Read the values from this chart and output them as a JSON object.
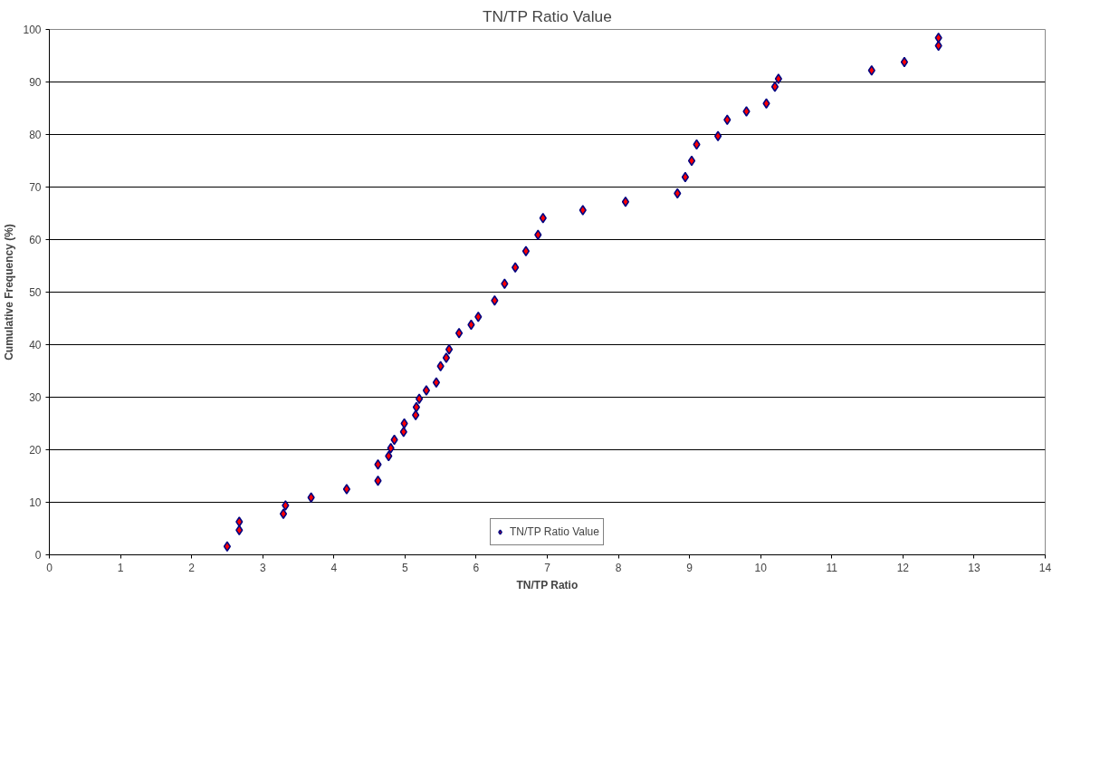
{
  "chart_data": {
    "type": "scatter",
    "title": "TN/TP Ratio Value",
    "xlabel": "TN/TP Ratio",
    "ylabel": "Cumulative Frequency (%)",
    "x": [
      2.5,
      2.67,
      2.67,
      3.29,
      3.32,
      3.68,
      4.18,
      4.62,
      4.62,
      4.77,
      4.8,
      4.85,
      4.98,
      4.99,
      5.15,
      5.16,
      5.2,
      5.3,
      5.44,
      5.5,
      5.58,
      5.62,
      5.76,
      5.93,
      6.03,
      6.26,
      6.4,
      6.55,
      6.7,
      6.87,
      6.94,
      7.5,
      8.1,
      8.83,
      8.94,
      9.03,
      9.1,
      9.4,
      9.53,
      9.8,
      10.08,
      10.2,
      10.25,
      11.56,
      12.02,
      12.5,
      12.5
    ],
    "series": [
      {
        "name": "TN/TP Ratio Value",
        "color": "#ff0000",
        "values": [
          1.6,
          4.7,
          6.3,
          7.8,
          9.4,
          10.9,
          12.5,
          14.1,
          17.2,
          18.8,
          20.3,
          21.9,
          23.4,
          25.0,
          26.6,
          28.1,
          29.7,
          31.3,
          32.8,
          35.9,
          37.5,
          39.1,
          42.2,
          43.8,
          45.3,
          48.4,
          51.6,
          54.7,
          57.8,
          60.9,
          64.1,
          65.6,
          67.2,
          68.8,
          71.9,
          75.0,
          78.1,
          79.7,
          82.8,
          84.4,
          85.9,
          89.1,
          90.6,
          92.2,
          93.8,
          96.9,
          98.4
        ]
      }
    ],
    "xlim": [
      0,
      14
    ],
    "xticks": [
      0,
      1,
      2,
      3,
      4,
      5,
      6,
      7,
      8,
      9,
      10,
      11,
      12,
      13,
      14
    ],
    "ylim": [
      0,
      100
    ],
    "yticks": [
      0,
      10,
      20,
      30,
      40,
      50,
      60,
      70,
      80,
      90,
      100
    ],
    "grid": "y",
    "legend": "bottom",
    "marker": "diamond"
  }
}
